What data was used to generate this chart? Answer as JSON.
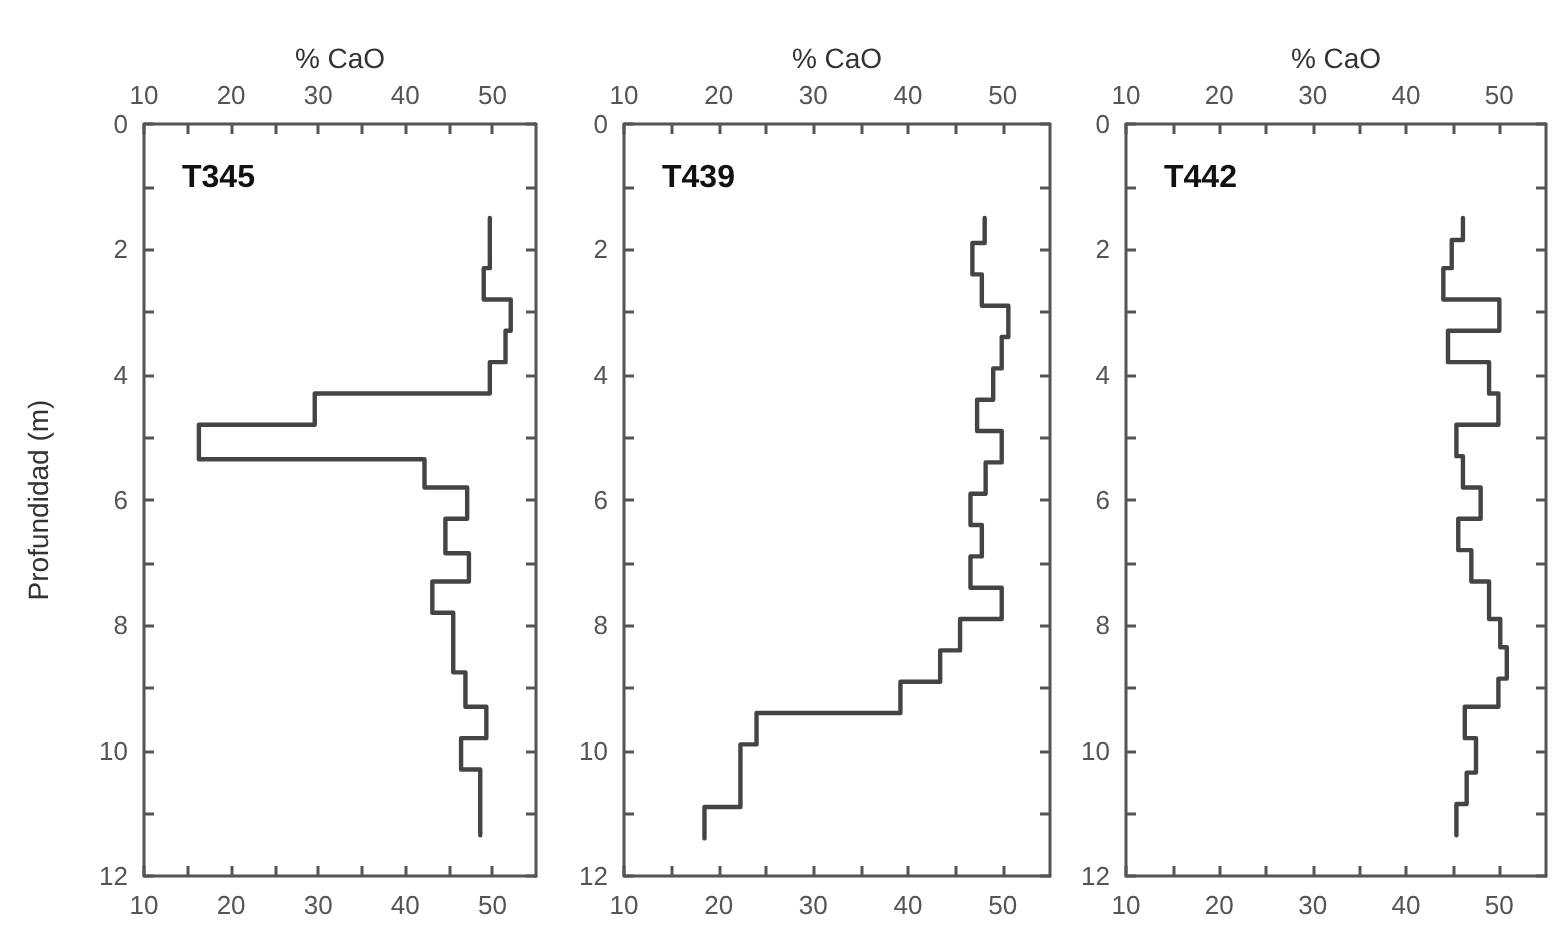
{
  "chart_data": [
    {
      "type": "line",
      "title": "T345",
      "x2label": "% CaO",
      "ylabel": "Profundidad (m)",
      "xlim": [
        10,
        55
      ],
      "xticks": [
        10,
        {
          "value": 15,
          "label": null
        },
        20,
        {
          "value": 25,
          "label": null
        },
        30,
        {
          "value": 35,
          "label": null
        },
        40,
        {
          "value": 45,
          "label": null
        },
        50
      ],
      "x2lim": [
        10,
        55
      ],
      "x2ticks": [
        10,
        {
          "value": 15,
          "label": null
        },
        20,
        {
          "value": 25,
          "label": null
        },
        30,
        {
          "value": 35,
          "label": null
        },
        40,
        {
          "value": 45,
          "label": null
        },
        50
      ],
      "ylim": [
        12,
        0
      ],
      "yticks": [
        0,
        {
          "value": 1,
          "label": null
        },
        2,
        {
          "value": 3,
          "label": null
        },
        4,
        {
          "value": 5,
          "label": null
        },
        6,
        {
          "value": 7,
          "label": null
        },
        8,
        {
          "value": 9,
          "label": null
        },
        10,
        {
          "value": 11,
          "label": null
        },
        12
      ],
      "grid": false,
      "marker": "none",
      "line_style": "solid",
      "series": [
        {
          "color": "#444444",
          "x": [
            49.7,
            49.7,
            49.0,
            49.0,
            52.1,
            52.1,
            51.5,
            51.5,
            49.7,
            49.7,
            29.6,
            29.6,
            16.3,
            16.3,
            42.2,
            42.2,
            47.1,
            47.1,
            44.6,
            44.6,
            47.3,
            47.3,
            43.1,
            43.1,
            45.5,
            45.5,
            46.9,
            46.9,
            49.3,
            49.3,
            46.4,
            46.4,
            48.6,
            48.6
          ],
          "values": [
            1.5,
            2.3,
            2.3,
            2.8,
            2.8,
            3.3,
            3.3,
            3.8,
            3.8,
            4.3,
            4.3,
            4.8,
            4.8,
            5.35,
            5.35,
            5.8,
            5.8,
            6.3,
            6.3,
            6.85,
            6.85,
            7.3,
            7.3,
            7.8,
            7.8,
            8.75,
            8.75,
            9.3,
            9.3,
            9.8,
            9.8,
            10.3,
            10.3,
            11.35
          ]
        }
      ]
    },
    {
      "type": "line",
      "title": "T439",
      "x2label": "% CaO",
      "xlim": [
        10,
        55
      ],
      "xticks": [
        10,
        {
          "value": 15,
          "label": null
        },
        20,
        {
          "value": 25,
          "label": null
        },
        30,
        {
          "value": 35,
          "label": null
        },
        40,
        {
          "value": 45,
          "label": null
        },
        50
      ],
      "x2lim": [
        10,
        55
      ],
      "x2ticks": [
        10,
        {
          "value": 15,
          "label": null
        },
        20,
        {
          "value": 25,
          "label": null
        },
        30,
        {
          "value": 35,
          "label": null
        },
        40,
        {
          "value": 45,
          "label": null
        },
        50
      ],
      "ylim": [
        12,
        0
      ],
      "yticks": [
        0,
        {
          "value": 1,
          "label": null
        },
        2,
        {
          "value": 3,
          "label": null
        },
        4,
        {
          "value": 5,
          "label": null
        },
        6,
        {
          "value": 7,
          "label": null
        },
        8,
        {
          "value": 9,
          "label": null
        },
        10,
        {
          "value": 11,
          "label": null
        },
        12
      ],
      "grid": false,
      "marker": "none",
      "line_style": "solid",
      "series": [
        {
          "color": "#444444",
          "x": [
            48.1,
            48.1,
            46.8,
            46.8,
            47.8,
            47.8,
            50.6,
            50.6,
            49.9,
            49.9,
            49.0,
            49.0,
            47.3,
            47.3,
            49.9,
            49.9,
            48.2,
            48.2,
            46.6,
            46.6,
            47.8,
            47.8,
            46.6,
            46.6,
            49.9,
            49.9,
            45.5,
            45.5,
            43.4,
            43.4,
            39.2,
            39.2,
            24.0,
            24.0,
            22.3,
            22.3,
            18.5,
            18.5
          ],
          "values": [
            1.5,
            1.9,
            1.9,
            2.4,
            2.4,
            2.9,
            2.9,
            3.4,
            3.4,
            3.9,
            3.9,
            4.4,
            4.4,
            4.9,
            4.9,
            5.4,
            5.4,
            5.9,
            5.9,
            6.4,
            6.4,
            6.9,
            6.9,
            7.4,
            7.4,
            7.9,
            7.9,
            8.4,
            8.4,
            8.9,
            8.9,
            9.4,
            9.4,
            9.9,
            9.9,
            10.9,
            10.9,
            11.4
          ]
        }
      ]
    },
    {
      "type": "line",
      "title": "T442",
      "x2label": "% CaO",
      "xlim": [
        10,
        55
      ],
      "xticks": [
        10,
        {
          "value": 15,
          "label": null
        },
        20,
        {
          "value": 25,
          "label": null
        },
        30,
        {
          "value": 35,
          "label": null
        },
        40,
        {
          "value": 45,
          "label": null
        },
        50
      ],
      "x2lim": [
        10,
        55
      ],
      "x2ticks": [
        10,
        {
          "value": 15,
          "label": null
        },
        20,
        {
          "value": 25,
          "label": null
        },
        30,
        {
          "value": 35,
          "label": null
        },
        40,
        {
          "value": 45,
          "label": null
        },
        50
      ],
      "ylim": [
        12,
        0
      ],
      "yticks": [
        0,
        {
          "value": 1,
          "label": null
        },
        2,
        {
          "value": 3,
          "label": null
        },
        4,
        {
          "value": 5,
          "label": null
        },
        6,
        {
          "value": 7,
          "label": null
        },
        8,
        {
          "value": 9,
          "label": null
        },
        10,
        {
          "value": 11,
          "label": null
        },
        12
      ],
      "grid": false,
      "marker": "none",
      "line_style": "solid",
      "series": [
        {
          "color": "#444444",
          "x": [
            46.1,
            46.1,
            44.9,
            44.9,
            44.0,
            44.0,
            50.0,
            50.0,
            44.5,
            44.5,
            48.9,
            48.9,
            49.9,
            49.9,
            45.4,
            45.4,
            46.1,
            46.1,
            48.0,
            48.0,
            45.6,
            45.6,
            47.0,
            47.0,
            48.9,
            48.9,
            50.1,
            50.1,
            50.8,
            50.8,
            49.9,
            49.9,
            46.3,
            46.3,
            47.5,
            47.5,
            46.5,
            46.5,
            45.4,
            45.4
          ],
          "values": [
            1.5,
            1.85,
            1.85,
            2.3,
            2.3,
            2.8,
            2.8,
            3.3,
            3.3,
            3.8,
            3.8,
            4.3,
            4.3,
            4.8,
            4.8,
            5.3,
            5.3,
            5.8,
            5.8,
            6.3,
            6.3,
            6.8,
            6.8,
            7.3,
            7.3,
            7.9,
            7.9,
            8.35,
            8.35,
            8.85,
            8.85,
            9.3,
            9.3,
            9.8,
            9.8,
            10.35,
            10.35,
            10.85,
            10.85,
            11.35
          ]
        }
      ]
    }
  ]
}
